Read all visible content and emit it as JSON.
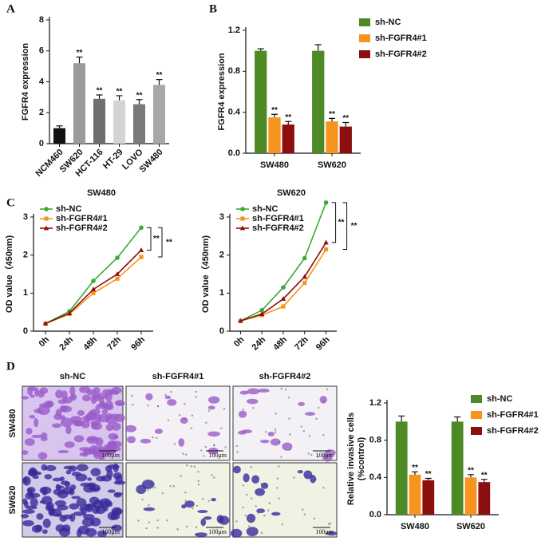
{
  "panels": [
    "A",
    "B",
    "C",
    "D"
  ],
  "chart_data": [
    {
      "type": "bar",
      "ylabel": "FGFR4 expression",
      "categories": [
        "NCM460",
        "SW620",
        "HCT-116",
        "HT-29",
        "LOVO",
        "SW480"
      ],
      "values": [
        1.0,
        5.2,
        2.9,
        2.8,
        2.55,
        3.8
      ],
      "errors": [
        0.15,
        0.4,
        0.25,
        0.3,
        0.3,
        0.35
      ],
      "significance": [
        null,
        "**",
        "**",
        "**",
        "**",
        "**"
      ],
      "colors": [
        "#111111",
        "#9a9a9a",
        "#6e6e6e",
        "#d4d4d4",
        "#7a7a7a",
        "#a8a8a8"
      ],
      "ylim": [
        0,
        8
      ],
      "yticks": [
        0,
        2,
        4,
        6,
        8
      ]
    },
    {
      "type": "bar",
      "ylabel": "FGFR4 expression",
      "legend": "right",
      "categories": [
        "SW480",
        "SW620"
      ],
      "series": [
        {
          "name": "sh-NC",
          "color": "#4d8a26",
          "values": [
            1.0,
            1.0
          ],
          "errors": [
            0.02,
            0.06
          ]
        },
        {
          "name": "sh-FGFR4#1",
          "color": "#f7941d",
          "values": [
            0.35,
            0.31
          ],
          "errors": [
            0.03,
            0.03
          ],
          "significance": [
            "**",
            "**"
          ]
        },
        {
          "name": "sh-FGFR4#2",
          "color": "#8b0f0f",
          "values": [
            0.28,
            0.26
          ],
          "errors": [
            0.03,
            0.04
          ],
          "significance": [
            "**",
            "**"
          ]
        }
      ],
      "ylim": [
        0,
        1.2
      ],
      "yticks": [
        {
          "value": 0,
          "label": "0.0"
        },
        0.4,
        0.8,
        1.2
      ]
    },
    {
      "type": "line",
      "title": "SW480",
      "ylabel": "OD value（450nm)",
      "legend": "upper left",
      "categories": [
        "0h",
        "24h",
        "48h",
        "72h",
        "96h"
      ],
      "series": [
        {
          "name": "sh-NC",
          "color": "#3aa935",
          "marker": "circle",
          "values": [
            0.2,
            0.52,
            1.32,
            1.93,
            2.72
          ]
        },
        {
          "name": "sh-FGFR4#1",
          "color": "#f7941d",
          "marker": "square",
          "values": [
            0.2,
            0.45,
            1.0,
            1.38,
            1.95
          ]
        },
        {
          "name": "sh-FGFR4#2",
          "color": "#8b0f0f",
          "marker": "triangle",
          "values": [
            0.2,
            0.47,
            1.1,
            1.5,
            2.13
          ]
        }
      ],
      "annotations": [
        "**",
        "**"
      ],
      "ylim": [
        0,
        3
      ],
      "yticks": [
        0,
        1,
        2,
        3
      ]
    },
    {
      "type": "line",
      "title": "SW620",
      "ylabel": "OD value（450nm)",
      "legend": "upper left",
      "categories": [
        "0h",
        "24h",
        "48h",
        "72h",
        "96h"
      ],
      "series": [
        {
          "name": "sh-NC",
          "color": "#3aa935",
          "marker": "circle",
          "values": [
            0.27,
            0.55,
            1.15,
            1.92,
            3.38
          ]
        },
        {
          "name": "sh-FGFR4#1",
          "color": "#f7941d",
          "marker": "square",
          "values": [
            0.27,
            0.42,
            0.65,
            1.27,
            2.15
          ]
        },
        {
          "name": "sh-FGFR4#2",
          "color": "#8b0f0f",
          "marker": "triangle",
          "values": [
            0.27,
            0.45,
            0.85,
            1.43,
            2.33
          ]
        }
      ],
      "annotations": [
        "**",
        "**"
      ],
      "ylim": [
        0,
        3
      ],
      "yticks": [
        0,
        1,
        2,
        3
      ]
    },
    {
      "type": "bar",
      "ylabel": [
        "Relative invasive cells",
        "(%control)"
      ],
      "legend": "right",
      "categories": [
        "SW480",
        "SW620"
      ],
      "series": [
        {
          "name": "sh-NC",
          "color": "#4d8a26",
          "values": [
            1.0,
            1.0
          ],
          "errors": [
            0.06,
            0.05
          ]
        },
        {
          "name": "sh-FGFR4#1",
          "color": "#f7941d",
          "values": [
            0.43,
            0.4
          ],
          "errors": [
            0.03,
            0.03
          ],
          "significance": [
            "**",
            "**"
          ]
        },
        {
          "name": "sh-FGFR4#2",
          "color": "#8b0f0f",
          "values": [
            0.37,
            0.35
          ],
          "errors": [
            0.02,
            0.03
          ],
          "significance": [
            "**",
            "**"
          ]
        }
      ],
      "ylim": [
        0,
        1.2
      ],
      "yticks": [
        {
          "value": 0,
          "label": "0.0"
        },
        0.4,
        0.8,
        1.2
      ]
    }
  ],
  "micrographs": {
    "columns": [
      "sh-NC",
      "sh-FGFR4#1",
      "sh-FGFR4#2"
    ],
    "rows": [
      "SW480",
      "SW620"
    ],
    "scale_bar": "100μm"
  }
}
